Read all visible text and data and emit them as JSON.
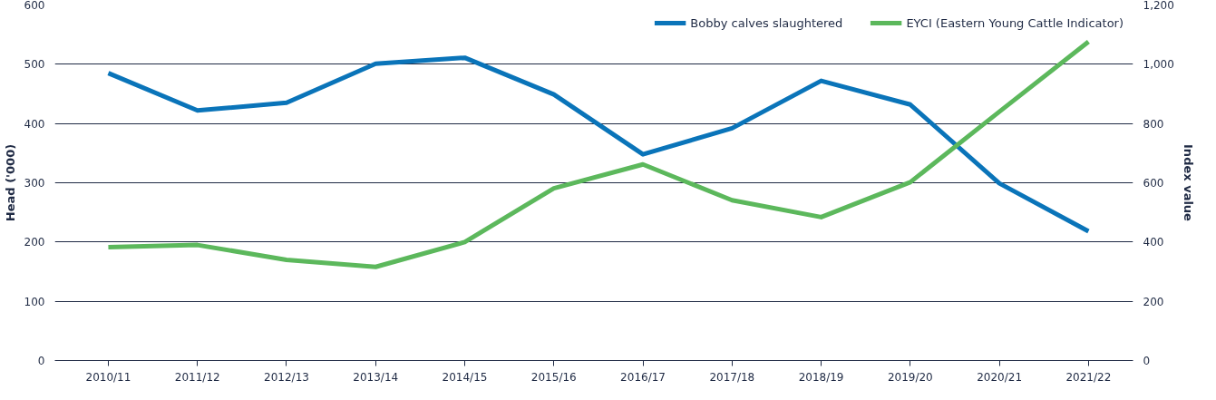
{
  "chart_data": {
    "type": "line",
    "ylabel": "Head ('000)",
    "y2label": "Index value",
    "categories": [
      "2010/11",
      "2011/12",
      "2012/13",
      "2013/14",
      "2014/15",
      "2015/16",
      "2016/17",
      "2017/18",
      "2018/19",
      "2019/20",
      "2020/21",
      "2021/22"
    ],
    "series": [
      {
        "name": "Bobby calves slaughtered",
        "color": "#0a74b9",
        "values": [
          485,
          422,
          435,
          501,
          511,
          449,
          348,
          392,
          472,
          432,
          299,
          218
        ]
      },
      {
        "name": "EYCI (Eastern Young Cattle Indicator)",
        "color": "#5cb85c",
        "axis": "y2",
        "values": [
          383,
          390,
          340,
          316,
          400,
          581,
          662,
          541,
          484,
          602,
          840,
          1076
        ]
      }
    ],
    "ylim": [
      0,
      600
    ],
    "yticks": [
      0,
      100,
      200,
      300,
      400,
      500,
      600
    ],
    "y2lim": [
      0,
      1200
    ],
    "y2ticks": [
      0,
      {
        "value": 200,
        "label": "200"
      },
      {
        "value": 400,
        "label": "400"
      },
      {
        "value": 600,
        "label": "600"
      },
      {
        "value": 800,
        "label": "800"
      },
      {
        "value": 1000,
        "label": "1,000"
      },
      {
        "value": 1200,
        "label": "1,200"
      }
    ],
    "grid": "y",
    "legend": "top right",
    "marker": "none",
    "line_style": "solid"
  }
}
